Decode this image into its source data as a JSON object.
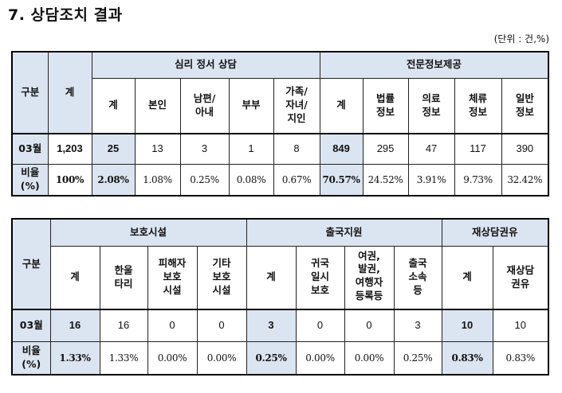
{
  "title": "7. 상담조치 결과",
  "unit": "(단위 : 건,%)",
  "table1": {
    "rowhead": "구분",
    "total_head": "계",
    "group1": "심리 정서 상담",
    "group1_cols": [
      "계",
      "본인",
      "남편/\n아내",
      "부부",
      "가족/\n자녀/\n지인"
    ],
    "group2": "전문정보제공",
    "group2_cols": [
      "계",
      "법률\n정보",
      "의료\n정보",
      "체류\n정보",
      "일반\n정보"
    ],
    "row1_label": "03월",
    "row1": [
      "1,203",
      "25",
      "13",
      "3",
      "1",
      "8",
      "849",
      "295",
      "47",
      "117",
      "390"
    ],
    "row2_label": "비율\n(%)",
    "row2": [
      "100%",
      "2.08%",
      "1.08%",
      "0.25%",
      "0.08%",
      "0.67%",
      "70.57%",
      "24.52%",
      "3.91%",
      "9.73%",
      "32.42%"
    ]
  },
  "table2": {
    "rowhead": "구분",
    "group1": "보호시설",
    "group1_cols": [
      "계",
      "한울\n타리",
      "피해자\n보호\n시설",
      "기타\n보호\n시설"
    ],
    "group2": "출국지원",
    "group2_cols": [
      "계",
      "귀국\n일시\n보호",
      "여권,\n발권,\n여행자\n등록등",
      "출국\n소속\n등"
    ],
    "group3": "재상담권유",
    "group3_cols": [
      "계",
      "재상담\n권유"
    ],
    "row1_label": "03월",
    "row1": [
      "16",
      "16",
      "0",
      "0",
      "3",
      "0",
      "0",
      "3",
      "10",
      "10"
    ],
    "row2_label": "비율\n(%)",
    "row2": [
      "1.33%",
      "1.33%",
      "0.00%",
      "0.00%",
      "0.25%",
      "0.00%",
      "0.00%",
      "0.25%",
      "0.83%",
      "0.83%"
    ]
  }
}
